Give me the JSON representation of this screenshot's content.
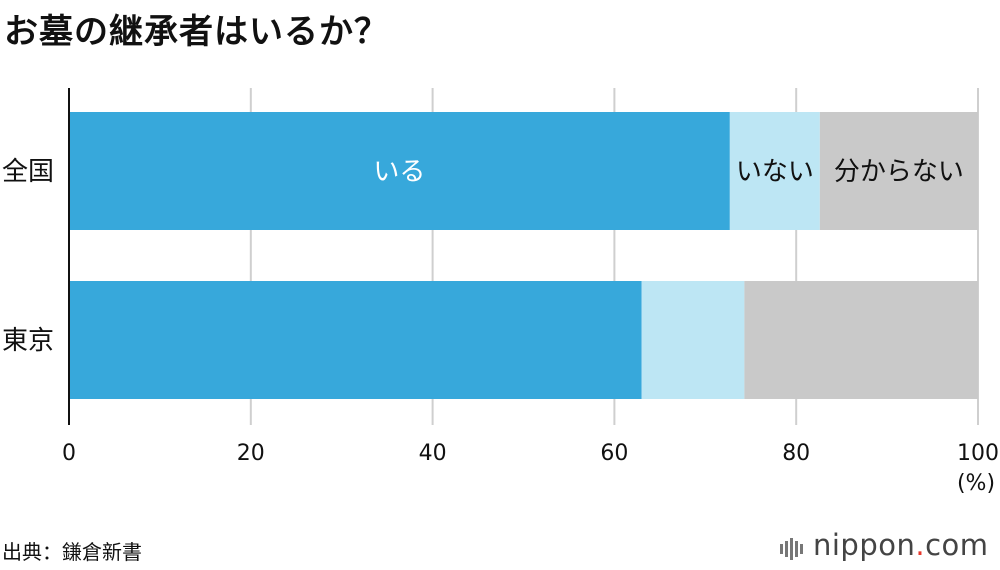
{
  "chart_data": {
    "type": "bar",
    "orientation": "horizontal",
    "stacked": true,
    "title": "お墓の継承者はいるか？",
    "categories": [
      "全国",
      "東京"
    ],
    "series": [
      {
        "name": "いる",
        "values": [
          72.7,
          63.0
        ],
        "color": "#37a8db",
        "label_color": "#ffffff"
      },
      {
        "name": "いない",
        "values": [
          9.9,
          11.3
        ],
        "color": "#bde6f4",
        "label_color": "#111111"
      },
      {
        "name": "分からない",
        "values": [
          17.4,
          25.7
        ],
        "color": "#c9c9c9",
        "label_color": "#111111"
      }
    ],
    "labeled_category_index": 0,
    "xlim": [
      0,
      100
    ],
    "xticks": [
      0,
      20,
      40,
      60,
      80,
      100
    ],
    "xunit": "(%)",
    "grid": true
  },
  "source": "出典：鎌倉新書",
  "brand": {
    "name": "nippon",
    "dot": ".",
    "tld": "com",
    "accent_color": "#e8382c"
  }
}
